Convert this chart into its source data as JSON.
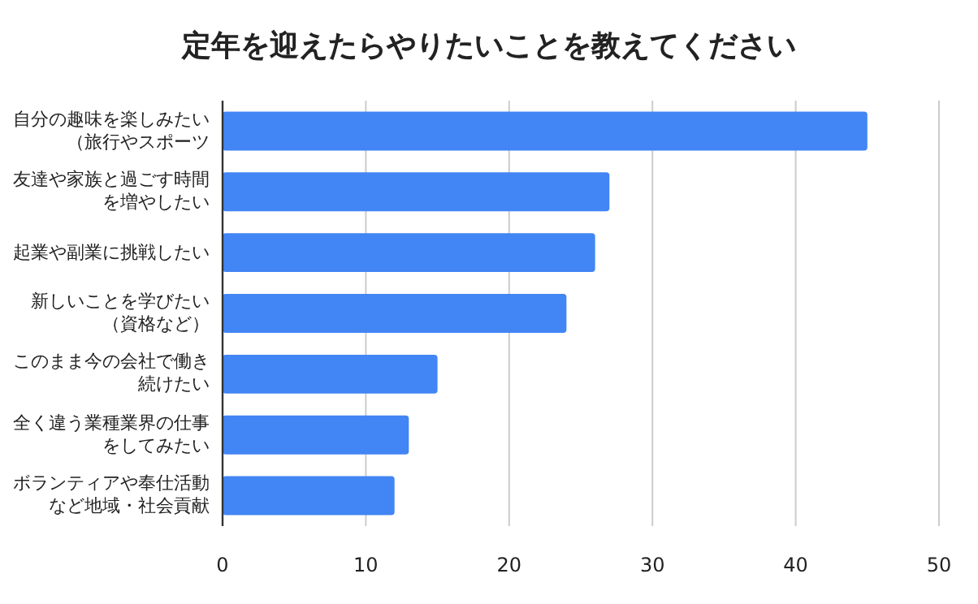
{
  "chart_data": {
    "type": "bar",
    "orientation": "horizontal",
    "title": "定年を迎えたらやりたいことを教えてください",
    "categories": [
      "自分の趣味を楽しみたい（旅行やスポーツ",
      "友達や家族と過ごす時間を増やしたい",
      "起業や副業に挑戦したい",
      "新しいことを学びたい（資格など）",
      "このまま今の会社で働き続けたい",
      "全く違う業種業界の仕事をしてみたい",
      "ボランティアや奉仕活動など地域・社会貢献"
    ],
    "values": [
      45,
      27,
      26,
      24,
      15,
      13,
      12
    ],
    "color": "#4285f4",
    "xlim": [
      0,
      50
    ],
    "xticks": [
      0,
      10,
      20,
      30,
      40,
      50
    ],
    "grid": "x"
  }
}
